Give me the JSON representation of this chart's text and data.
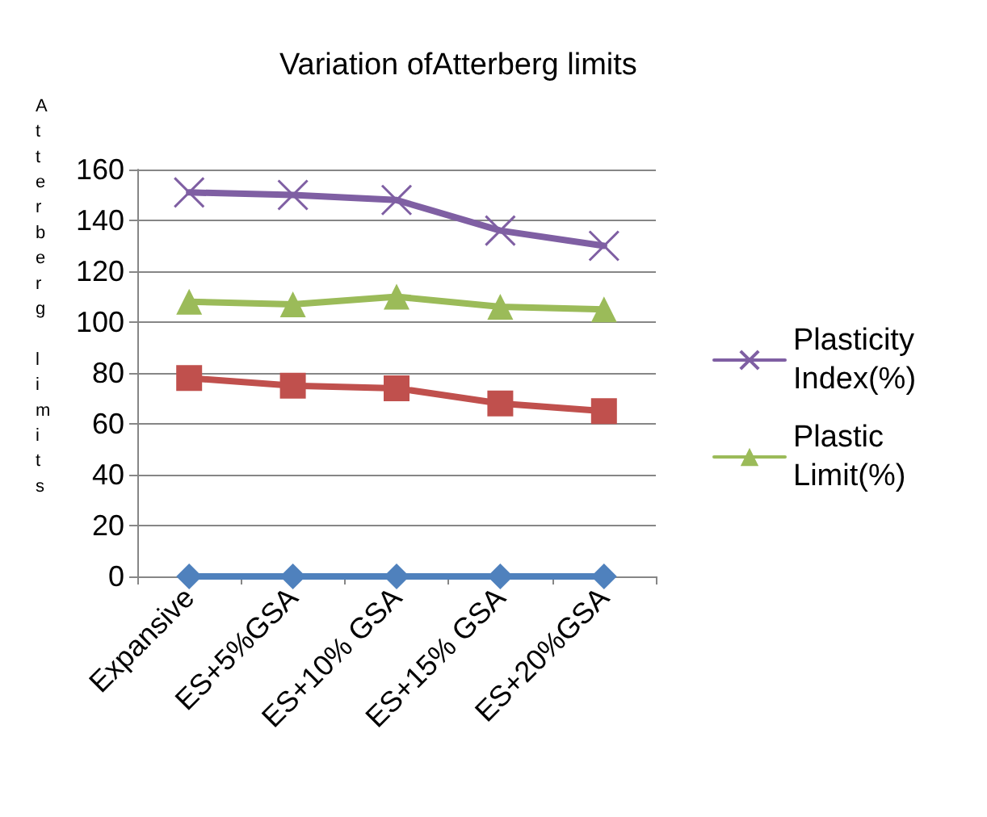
{
  "chart_data": {
    "type": "line",
    "title": "Variation ofAtterberg limits",
    "ylabel": "Atterberg limits",
    "categories": [
      "Expansive",
      "ES+5%GSA",
      "ES+10% GSA",
      "ES+15% GSA",
      "ES+20%GSA"
    ],
    "series": [
      {
        "name": "Plasticity Index(%)",
        "color": "#7f5fa3",
        "marker": "cross",
        "values": [
          151,
          150,
          148,
          136,
          130
        ]
      },
      {
        "name": "Plastic Limit(%)",
        "color": "#9bbb59",
        "marker": "triangle",
        "values": [
          108,
          107,
          110,
          106,
          105
        ]
      },
      {
        "color": "#c0504d",
        "marker": "square",
        "values": [
          78,
          75,
          74,
          68,
          65
        ]
      },
      {
        "color": "#4f81bd",
        "marker": "diamond",
        "values": [
          0,
          0,
          0,
          0,
          0
        ]
      }
    ],
    "ylim": [
      0,
      160
    ],
    "yticks": [
      0,
      20,
      40,
      60,
      80,
      100,
      120,
      140,
      160
    ],
    "grid": "y",
    "legend": "right"
  }
}
